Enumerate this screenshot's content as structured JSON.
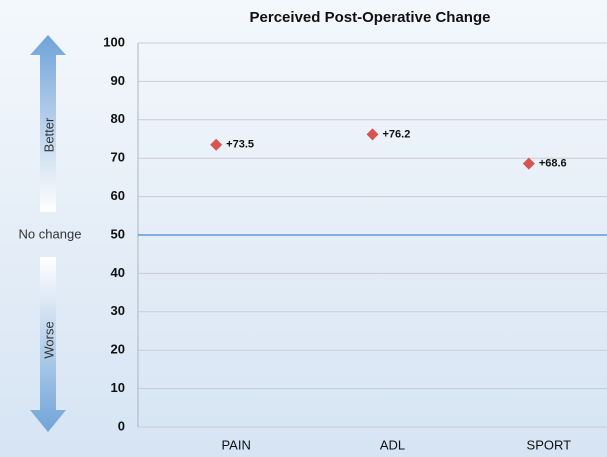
{
  "chart_data": {
    "type": "scatter",
    "title": "Perceived Post-Operative Change",
    "categories": [
      "PAIN",
      "ADL",
      "SPORT"
    ],
    "values": [
      73.5,
      76.2,
      68.6
    ],
    "value_labels": [
      "+73.5",
      "+76.2",
      "+68.6"
    ],
    "color": "#d9534f",
    "ylim": [
      0,
      100
    ],
    "yticks": [
      0,
      10,
      20,
      30,
      40,
      50,
      60,
      70,
      80,
      90,
      100
    ],
    "grid": true,
    "reference_line": {
      "value": 50,
      "label": "No change",
      "color": "#5b9bd5"
    },
    "annotations": {
      "better": "Better",
      "worse": "Worse"
    }
  }
}
